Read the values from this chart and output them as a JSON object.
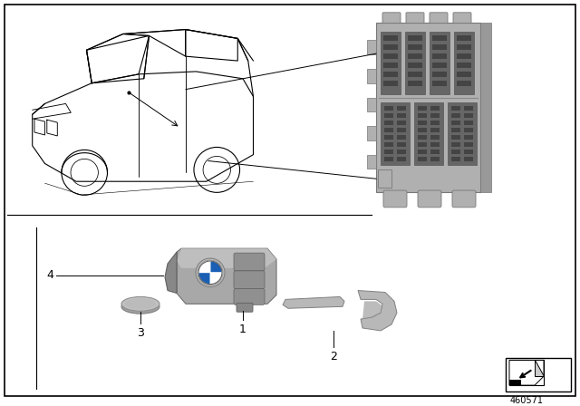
{
  "doc_number": "460571",
  "background_color": "#ffffff",
  "line_color": "#000000",
  "text_color": "#000000",
  "gray_car": "#d8d8d8",
  "gray_module_body": "#b0b0b0",
  "gray_module_dark": "#888888",
  "gray_module_darker": "#666666",
  "gray_key_light": "#c8c8c8",
  "gray_key_mid": "#a8a8a8",
  "gray_key_dark": "#888888",
  "gray_coin_light": "#c0c0c0",
  "gray_coin_mid": "#a0a0a0",
  "gray_handle_light": "#b8b8b8",
  "gray_handle_dark": "#909090",
  "bmw_blue": "#1a5fb4",
  "bmw_white": "#ffffff"
}
